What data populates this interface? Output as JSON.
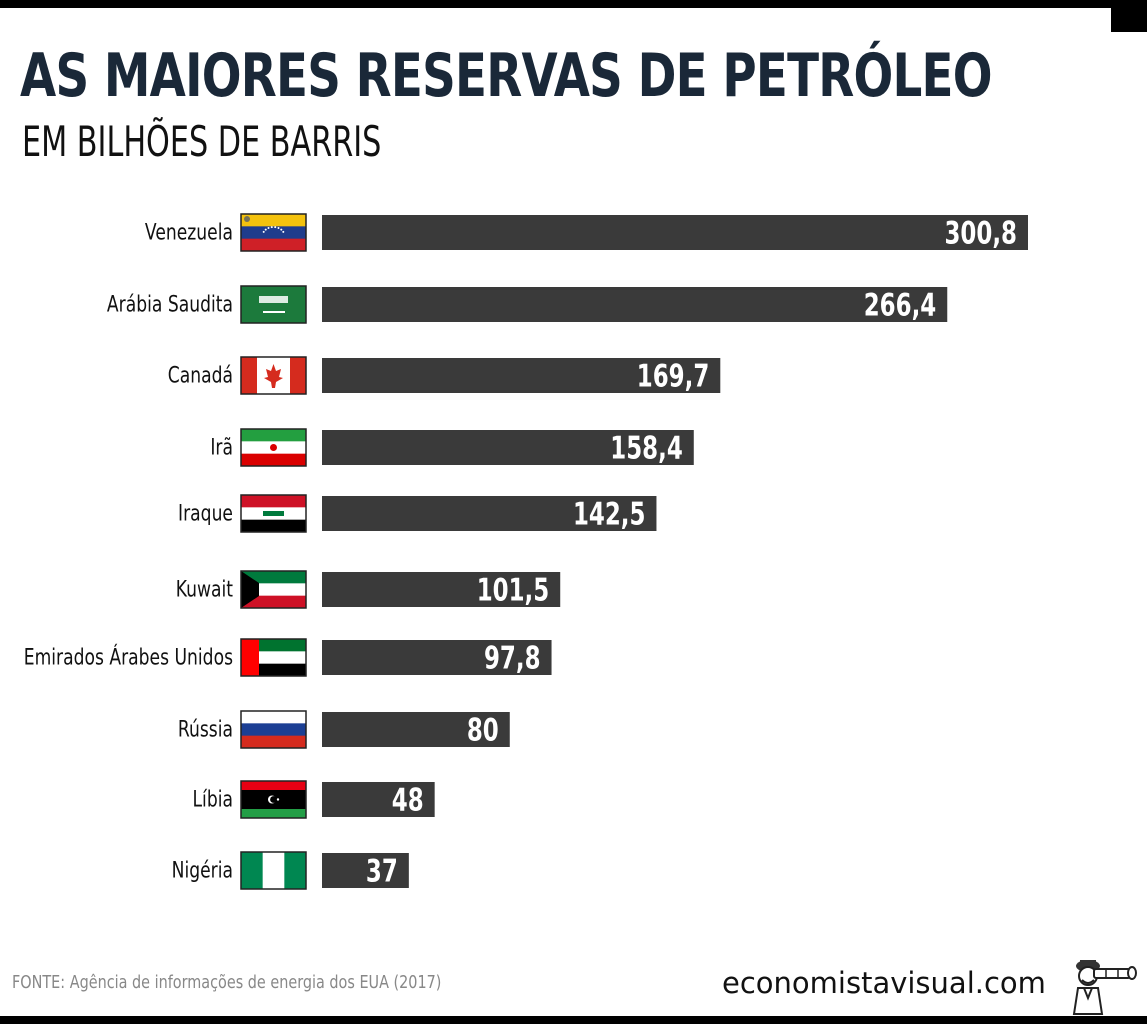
{
  "header": {
    "title": "AS MAIORES RESERVAS DE PETRÓLEO",
    "subtitle": "EM BILHÕES DE BARRIS"
  },
  "footer": {
    "source": "FONTE: Agência de informações de energia dos EUA (2017)",
    "brand": "economistavisual.com",
    "brand_icon": "spyglass-economist-icon"
  },
  "colors": {
    "bar": "#3a3a3a",
    "bar_label": "#ffffff",
    "title": "#1a2838"
  },
  "chart_data": {
    "type": "bar",
    "orientation": "horizontal",
    "title": "AS MAIORES RESERVAS DE PETRÓLEO",
    "subtitle": "EM BILHÕES DE BARRIS",
    "categories": [
      "Venezuela",
      "Arábia Saudita",
      "Canadá",
      "Irã",
      "Iraque",
      "Kuwait",
      "Emirados Árabes Unidos",
      "Rússia",
      "Líbia",
      "Nigéria"
    ],
    "values": [
      300.8,
      266.4,
      169.7,
      158.4,
      142.5,
      101.5,
      97.8,
      80,
      48,
      37
    ],
    "value_labels": [
      "300,8",
      "266,4",
      "169,7",
      "158,4",
      "142,5",
      "101,5",
      "97,8",
      "80",
      "48",
      "37"
    ],
    "flag_icons": [
      "flag-venezuela-icon",
      "flag-saudi-arabia-icon",
      "flag-canada-icon",
      "flag-iran-icon",
      "flag-iraq-icon",
      "flag-kuwait-icon",
      "flag-uae-icon",
      "flag-russia-icon",
      "flag-libya-icon",
      "flag-nigeria-icon"
    ],
    "xlim": [
      0,
      300.8
    ],
    "grid": false,
    "axes_visible": false
  }
}
